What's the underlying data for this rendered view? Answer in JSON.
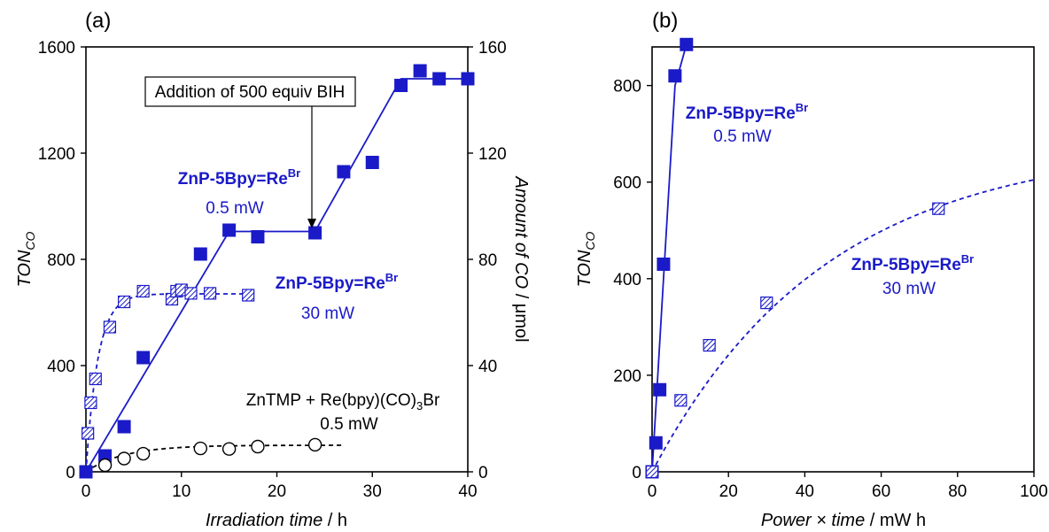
{
  "chart_data": [
    {
      "panel": "(a)",
      "type": "scatter",
      "xlabel_italic": "Irradiation time",
      "xlabel_unit": " / h",
      "ylabel_base": "TON",
      "ylabel_sub": "CO",
      "y2label_italic": "Amount of CO",
      "y2label_unit": " / μmol",
      "xlim": [
        0,
        40
      ],
      "ylim": [
        0,
        1600
      ],
      "y2lim": [
        0,
        160
      ],
      "x_ticks": [
        0,
        10,
        20,
        30,
        40
      ],
      "y_ticks": [
        0,
        400,
        800,
        1200,
        1600
      ],
      "y2_ticks": [
        0,
        40,
        80,
        120,
        160
      ],
      "series": [
        {
          "marker": "filled-square",
          "color": "#1a1ac8",
          "points": [
            [
              0,
              0
            ],
            [
              2,
              60
            ],
            [
              4,
              170
            ],
            [
              6,
              430
            ],
            [
              12,
              820
            ],
            [
              15,
              910
            ],
            [
              18,
              885
            ],
            [
              24,
              900
            ],
            [
              27,
              1130
            ],
            [
              30,
              1165
            ],
            [
              33,
              1455
            ],
            [
              35,
              1510
            ],
            [
              37,
              1480
            ],
            [
              40,
              1480
            ]
          ],
          "fit": {
            "style": "solid",
            "points": [
              [
                0,
                0
              ],
              [
                15,
                905
              ],
              [
                24,
                905
              ],
              [
                33,
                1480
              ],
              [
                40,
                1480
              ]
            ]
          }
        },
        {
          "marker": "hatched-square",
          "color": "#1a1ac8",
          "points": [
            [
              0.2,
              145
            ],
            [
              0.5,
              260
            ],
            [
              1,
              350
            ],
            [
              2.5,
              545
            ],
            [
              4,
              640
            ],
            [
              6,
              680
            ],
            [
              9,
              650
            ],
            [
              9.5,
              680
            ],
            [
              10,
              685
            ],
            [
              11,
              672
            ],
            [
              13,
              672
            ],
            [
              17,
              665
            ]
          ],
          "fit": {
            "style": "dashed",
            "model": "exp",
            "a": 670,
            "k": 0.8,
            "xmax": 17
          }
        },
        {
          "marker": "open-circle",
          "color": "#000000",
          "points": [
            [
              2,
              25
            ],
            [
              4,
              50
            ],
            [
              6,
              68
            ],
            [
              12,
              88
            ],
            [
              15,
              86
            ],
            [
              18,
              95
            ],
            [
              24,
              102
            ]
          ],
          "fit": {
            "style": "dashed",
            "model": "exp",
            "a": 100,
            "k": 0.25,
            "xmax": 27
          }
        }
      ],
      "annotations": {
        "bih_box": "Addition of 500 equiv BIH",
        "s1_name": "ZnP-5Bpy=Re",
        "s1_sup": "Br",
        "s1_power": "0.5 mW",
        "s2_name": "ZnP-5Bpy=Re",
        "s2_sup": "Br",
        "s2_power": "30 mW",
        "s3_name_a": "ZnTMP + Re(bpy)(CO)",
        "s3_sub": "3",
        "s3_name_b": "Br",
        "s3_power": "0.5 mW"
      }
    },
    {
      "panel": "(b)",
      "type": "scatter",
      "xlabel_italic": "Power × time",
      "xlabel_unit": " / mW h",
      "ylabel_base": "TON",
      "ylabel_sub": "CO",
      "xlim": [
        0,
        100
      ],
      "ylim": [
        0,
        880
      ],
      "x_ticks": [
        0,
        20,
        40,
        60,
        80,
        100
      ],
      "y_ticks": [
        0,
        200,
        400,
        600,
        800
      ],
      "series": [
        {
          "marker": "filled-square",
          "color": "#1a1ac8",
          "points": [
            [
              0,
              0
            ],
            [
              1,
              60
            ],
            [
              2,
              170
            ],
            [
              3,
              430
            ],
            [
              6,
              820
            ],
            [
              9,
              885
            ]
          ],
          "fit": {
            "style": "solid",
            "points": [
              [
                0,
                0
              ],
              [
                3,
                400
              ],
              [
                6,
                800
              ],
              [
                9,
                885
              ]
            ]
          }
        },
        {
          "marker": "hatched-square",
          "color": "#1a1ac8",
          "points": [
            [
              0,
              0
            ],
            [
              7.5,
              148
            ],
            [
              15,
              262
            ],
            [
              30,
              350
            ],
            [
              75,
              545
            ]
          ],
          "fit": {
            "style": "dashed",
            "model": "exp",
            "a": 680,
            "k": 0.022,
            "xmax": 100
          }
        }
      ],
      "annotations": {
        "s1_name": "ZnP-5Bpy=Re",
        "s1_sup": "Br",
        "s1_power": "0.5 mW",
        "s2_name": "ZnP-5Bpy=Re",
        "s2_sup": "Br",
        "s2_power": "30 mW"
      }
    }
  ]
}
